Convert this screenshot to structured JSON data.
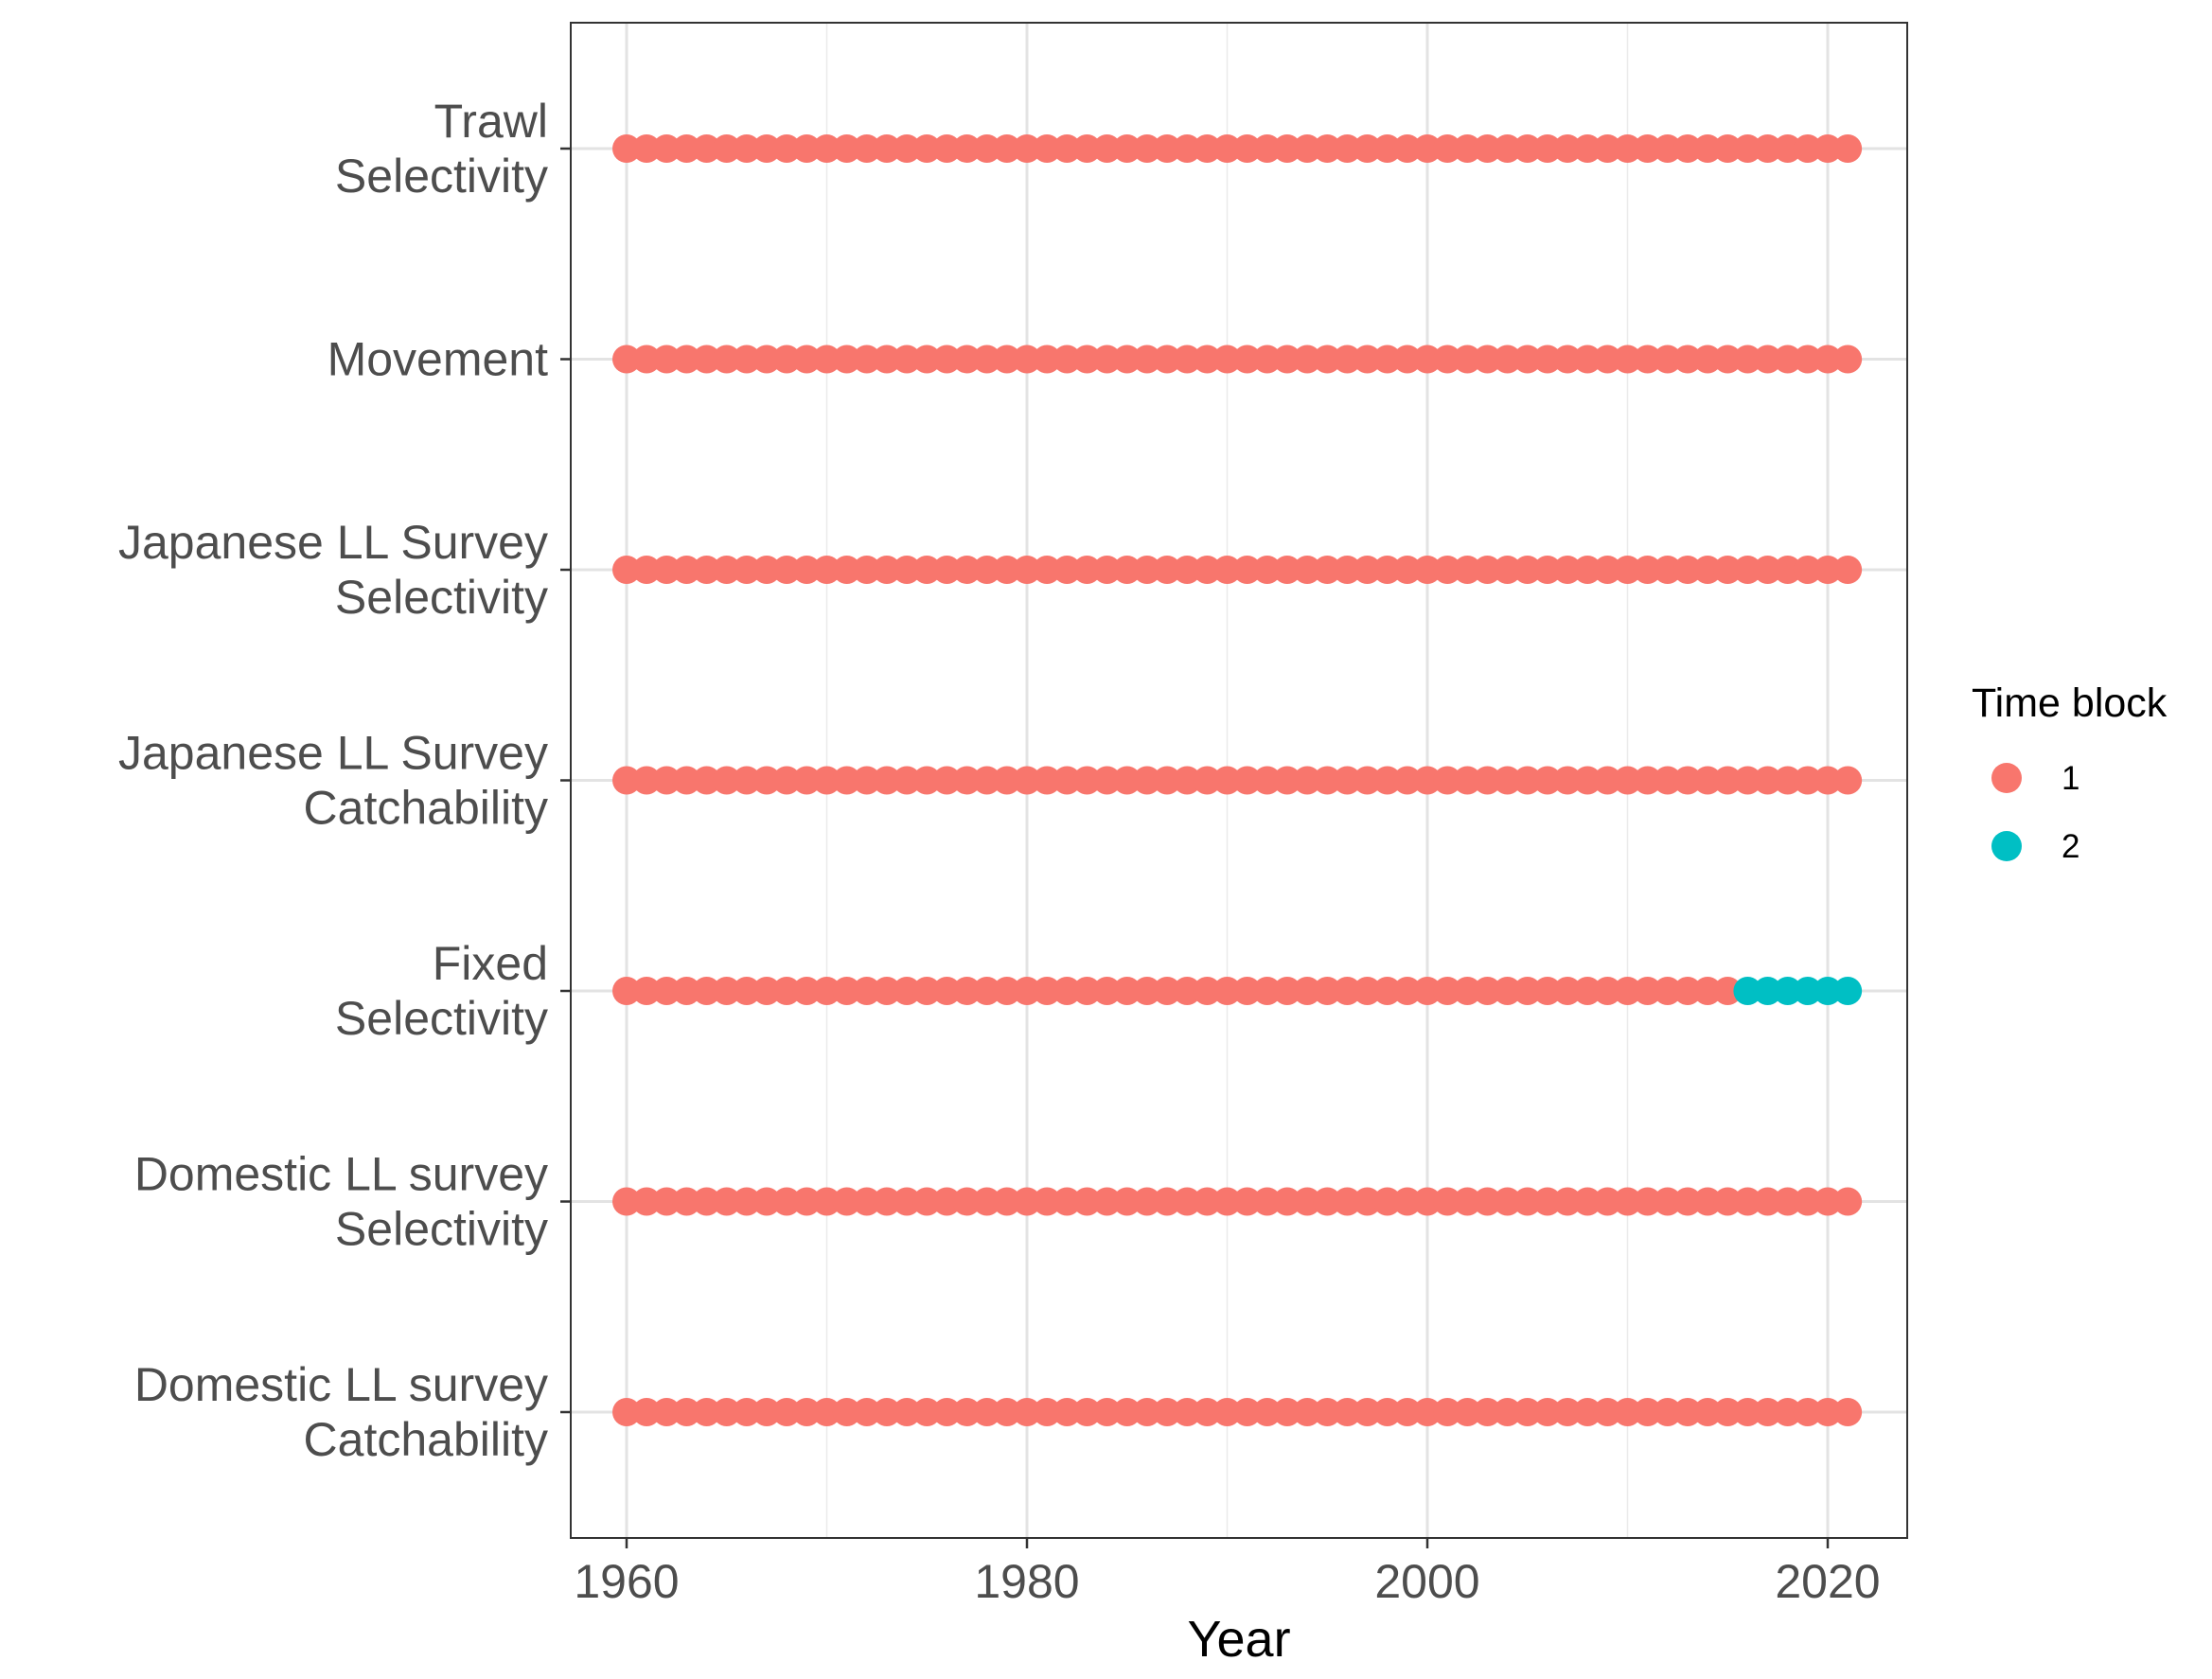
{
  "chart_data": {
    "type": "scatter",
    "title": "",
    "xlabel": "Year",
    "ylabel": "",
    "xlim": [
      1957,
      2024
    ],
    "x_ticks": [
      1960,
      1980,
      2000,
      2020
    ],
    "x_tick_labels": [
      "1960",
      "1980",
      "2000",
      "2020"
    ],
    "grid": true,
    "legend_position": "right",
    "legend": {
      "title": "Time block",
      "entries": [
        {
          "label": "1",
          "color": "#F8766D"
        },
        {
          "label": "2",
          "color": "#00BFC4"
        }
      ]
    },
    "categories": [
      "Trawl\nSelectivity",
      "Movement",
      "Japanese LL Survey\nSelectivity",
      "Japanese LL Survey\nCatchability",
      "Fixed\nSelectivity",
      "Domestic LL survey\nSelectivity",
      "Domestic LL survey\nCatchability"
    ],
    "series": [
      {
        "category": "Trawl\nSelectivity",
        "blocks": [
          {
            "block": "1",
            "x_start": 1960,
            "x_end": 2021
          }
        ]
      },
      {
        "category": "Movement",
        "blocks": [
          {
            "block": "1",
            "x_start": 1960,
            "x_end": 2021
          }
        ]
      },
      {
        "category": "Japanese LL Survey\nSelectivity",
        "blocks": [
          {
            "block": "1",
            "x_start": 1960,
            "x_end": 2021
          }
        ]
      },
      {
        "category": "Japanese LL Survey\nCatchability",
        "blocks": [
          {
            "block": "1",
            "x_start": 1960,
            "x_end": 2021
          }
        ]
      },
      {
        "category": "Fixed\nSelectivity",
        "blocks": [
          {
            "block": "1",
            "x_start": 1960,
            "x_end": 2015
          },
          {
            "block": "2",
            "x_start": 2016,
            "x_end": 2021
          }
        ]
      },
      {
        "category": "Domestic LL survey\nSelectivity",
        "blocks": [
          {
            "block": "1",
            "x_start": 1960,
            "x_end": 2021
          }
        ]
      },
      {
        "category": "Domestic LL survey\nCatchability",
        "blocks": [
          {
            "block": "1",
            "x_start": 1960,
            "x_end": 2021
          }
        ]
      }
    ]
  }
}
